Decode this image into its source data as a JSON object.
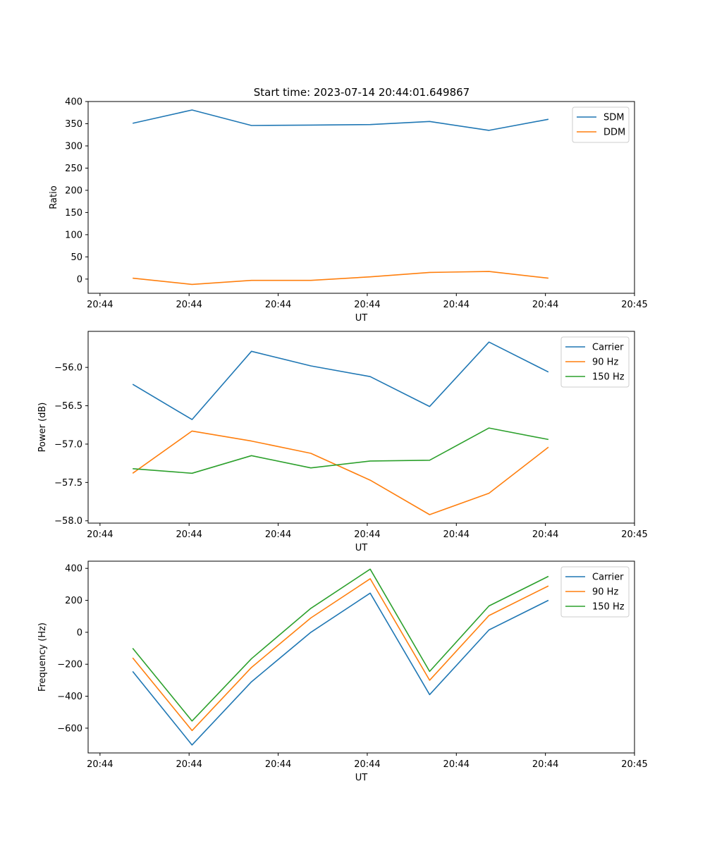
{
  "figure": {
    "title": "Start time: 2023-07-14 20:44:01.649867"
  },
  "colors": {
    "blue": "#1f77b4",
    "orange": "#ff7f0e",
    "green": "#2ca02c"
  },
  "chart_data": [
    {
      "type": "line",
      "title": "Start time: 2023-07-14 20:44:01.649867",
      "xlabel": "UT",
      "ylabel": "Ratio",
      "x": [
        1,
        2,
        3,
        4,
        5,
        6,
        7,
        8
      ],
      "xlim": [
        0.25,
        9.45
      ],
      "xticks": [
        0.45,
        1.95,
        3.45,
        4.95,
        6.45,
        7.95,
        9.45
      ],
      "xtick_labels": [
        "20:44",
        "20:44",
        "20:44",
        "20:44",
        "20:44",
        "20:44",
        "20:45"
      ],
      "ylim": [
        -32,
        400
      ],
      "yticks": [
        0,
        50,
        100,
        150,
        200,
        250,
        300,
        350,
        400
      ],
      "ytick_labels": [
        "0",
        "50",
        "100",
        "150",
        "200",
        "250",
        "300",
        "350",
        "400"
      ],
      "legend_position": "top-right",
      "series": [
        {
          "name": "SDM",
          "color": "blue",
          "values": [
            351,
            381,
            346,
            347,
            348,
            355,
            335,
            360
          ]
        },
        {
          "name": "DDM",
          "color": "orange",
          "values": [
            2,
            -12,
            -3,
            -3,
            5,
            15,
            17,
            2
          ]
        }
      ]
    },
    {
      "type": "line",
      "title": "",
      "xlabel": "UT",
      "ylabel": "Power (dB)",
      "x": [
        1,
        2,
        3,
        4,
        5,
        6,
        7,
        8
      ],
      "xlim": [
        0.25,
        9.45
      ],
      "xticks": [
        0.45,
        1.95,
        3.45,
        4.95,
        6.45,
        7.95,
        9.45
      ],
      "xtick_labels": [
        "20:44",
        "20:44",
        "20:44",
        "20:44",
        "20:44",
        "20:44",
        "20:45"
      ],
      "ylim": [
        -58.03,
        -55.53
      ],
      "yticks": [
        -58.0,
        -57.5,
        -57.0,
        -56.5,
        -56.0
      ],
      "ytick_labels": [
        "−58.0",
        "−57.5",
        "−57.0",
        "−56.5",
        "−56.0"
      ],
      "legend_position": "top-right",
      "series": [
        {
          "name": "Carrier",
          "color": "blue",
          "values": [
            -56.22,
            -56.68,
            -55.79,
            -55.98,
            -56.12,
            -56.51,
            -55.67,
            -56.06
          ]
        },
        {
          "name": "90 Hz",
          "color": "orange",
          "values": [
            -57.38,
            -56.83,
            -56.96,
            -57.12,
            -57.47,
            -57.92,
            -57.64,
            -57.04
          ]
        },
        {
          "name": "150 Hz",
          "color": "green",
          "values": [
            -57.32,
            -57.38,
            -57.15,
            -57.31,
            -57.22,
            -57.21,
            -56.79,
            -56.94
          ]
        }
      ]
    },
    {
      "type": "line",
      "title": "",
      "xlabel": "UT",
      "ylabel": "Frequency (Hz)",
      "x": [
        1,
        2,
        3,
        4,
        5,
        6,
        7,
        8
      ],
      "xlim": [
        0.25,
        9.45
      ],
      "xticks": [
        0.45,
        1.95,
        3.45,
        4.95,
        6.45,
        7.95,
        9.45
      ],
      "xtick_labels": [
        "20:44",
        "20:44",
        "20:44",
        "20:44",
        "20:44",
        "20:44",
        "20:45"
      ],
      "ylim": [
        -755,
        445
      ],
      "yticks": [
        -600,
        -400,
        -200,
        0,
        200,
        400
      ],
      "ytick_labels": [
        "−600",
        "−400",
        "−200",
        "0",
        "200",
        "400"
      ],
      "legend_position": "top-right",
      "series": [
        {
          "name": "Carrier",
          "color": "blue",
          "values": [
            -245,
            -705,
            -310,
            0,
            245,
            -390,
            15,
            200
          ]
        },
        {
          "name": "90 Hz",
          "color": "orange",
          "values": [
            -160,
            -615,
            -220,
            90,
            335,
            -300,
            105,
            290
          ]
        },
        {
          "name": "150 Hz",
          "color": "green",
          "values": [
            -100,
            -555,
            -165,
            150,
            395,
            -245,
            165,
            350
          ]
        }
      ]
    }
  ]
}
